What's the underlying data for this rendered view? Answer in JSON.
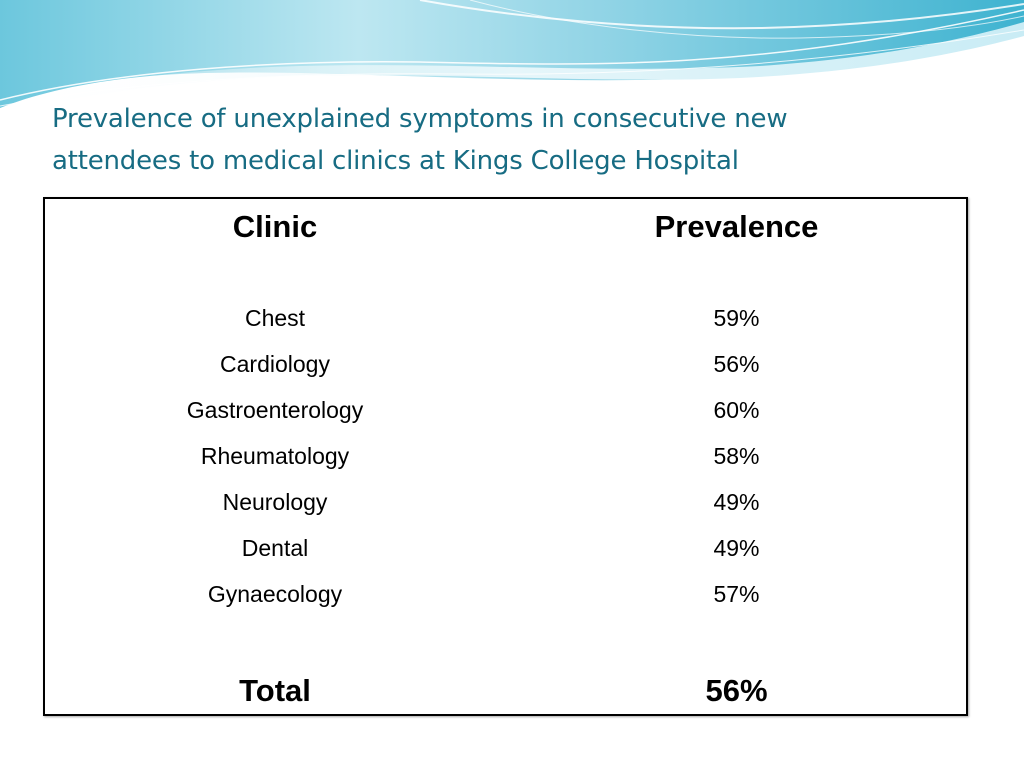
{
  "slide": {
    "title_line1": "Prevalence of unexplained symptoms in consecutive new",
    "title_line2": "attendees to medical clinics at Kings College Hospital"
  },
  "table": {
    "headers": [
      "Clinic",
      "Prevalence"
    ],
    "rows": [
      {
        "clinic": "Chest",
        "prevalence": "59%"
      },
      {
        "clinic": "Cardiology",
        "prevalence": "56%"
      },
      {
        "clinic": "Gastroenterology",
        "prevalence": "60%"
      },
      {
        "clinic": "Rheumatology",
        "prevalence": "58%"
      },
      {
        "clinic": "Neurology",
        "prevalence": "49%"
      },
      {
        "clinic": "Dental",
        "prevalence": "49%"
      },
      {
        "clinic": "Gynaecology",
        "prevalence": "57%"
      }
    ],
    "total": {
      "label": "Total",
      "value": "56%"
    }
  },
  "colors": {
    "title": "#176c83",
    "wave_light": "#dff3f8",
    "wave_mid": "#a9dcea",
    "wave_deep": "#52bcd6"
  }
}
